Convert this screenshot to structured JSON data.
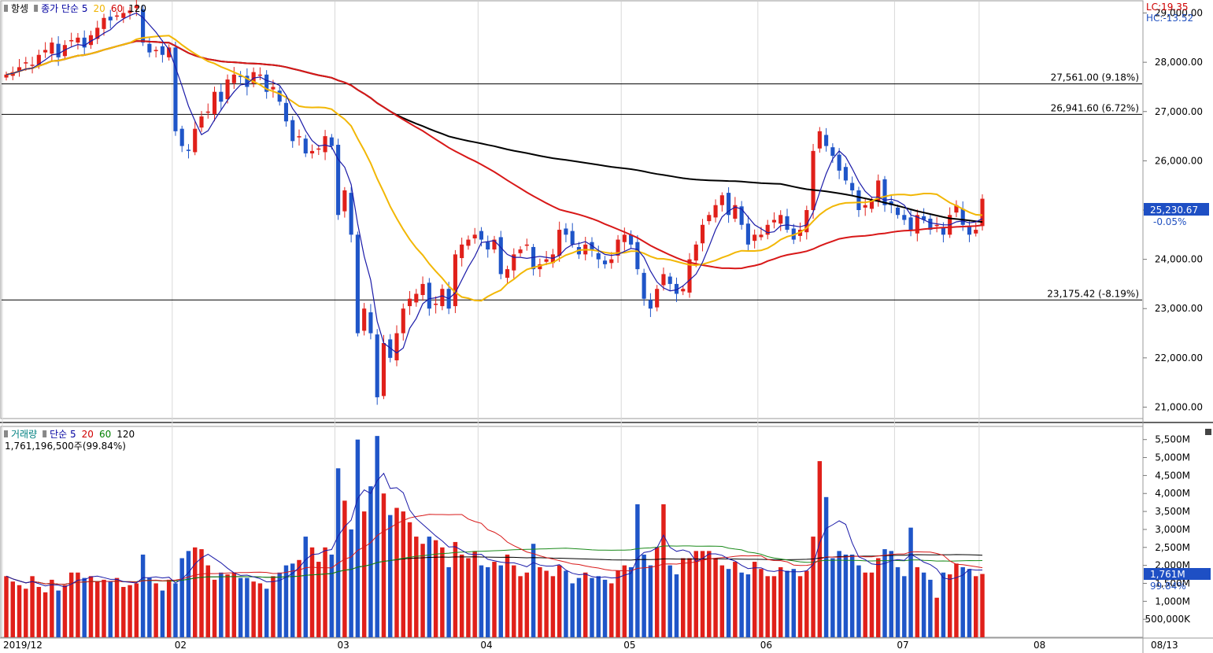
{
  "price_panel": {
    "legend": [
      {
        "text": "항셍",
        "color": "#000000"
      },
      {
        "text": "종가 단순 5",
        "color": "#0000a0"
      },
      {
        "text": "20",
        "color": "#f0b400"
      },
      {
        "text": "60",
        "color": "#d00000"
      },
      {
        "text": "120",
        "color": "#000000"
      }
    ],
    "lc_label": "LC:19.35",
    "hc_label": "HC:-13.52",
    "current_price_label": "25,230.67",
    "current_change_label": "-0.05%",
    "hlines": [
      {
        "value": 27561.0,
        "label": "27,561.00 (9.18%)"
      },
      {
        "value": 26941.6,
        "label": "26,941.60 (6.72%)"
      },
      {
        "value": 23175.42,
        "label": "23,175.42 (-8.19%)"
      }
    ],
    "y_ticks": [
      "29,000.00",
      "28,000.00",
      "27,000.00",
      "26,000.00",
      "25,000.00",
      "24,000.00",
      "23,000.00",
      "22,000.00",
      "21,000.00"
    ]
  },
  "volume_panel": {
    "legend": [
      {
        "text": "거래량",
        "color": "#008080"
      },
      {
        "text": "단순 5",
        "color": "#0000a0"
      },
      {
        "text": "20",
        "color": "#d00000"
      },
      {
        "text": "60",
        "color": "#008000"
      },
      {
        "text": "120",
        "color": "#000000"
      }
    ],
    "info_label": "1,761,196,500주(99.84%)",
    "current_volume_label": "1,761M",
    "current_pct_label": "99.84%",
    "y_ticks": [
      "5,500M",
      "5,000M",
      "4,500M",
      "4,000M",
      "3,500M",
      "3,000M",
      "2,500M",
      "2,000M",
      "1,500M",
      "1,000M",
      "500,000K"
    ]
  },
  "x_axis": {
    "labels": [
      "2019/12",
      "02",
      "03",
      "04",
      "05",
      "06",
      "07",
      "08"
    ],
    "right_label": "08/13"
  },
  "chart_data": [
    {
      "type": "candlestick",
      "title": "항셍",
      "y_range": [
        20800,
        29200
      ],
      "moving_averages": [
        5,
        20,
        60,
        120
      ],
      "ohlc_closes_approx": [
        27750,
        27800,
        27900,
        28000,
        27950,
        28150,
        28250,
        28400,
        28100,
        28350,
        28450,
        28500,
        28300,
        28550,
        28700,
        28900,
        28850,
        28950,
        29000,
        29050,
        29150,
        28400,
        28200,
        28250,
        28150,
        28300,
        26600,
        26300,
        26200,
        26650,
        26900,
        27000,
        27400,
        27200,
        27650,
        27750,
        27700,
        27500,
        27800,
        27750,
        27400,
        27500,
        27200,
        26800,
        26400,
        26500,
        26150,
        26200,
        26250,
        26500,
        26300,
        24900,
        25400,
        24500,
        22500,
        23000,
        22500,
        21200,
        22300,
        22000,
        22500,
        23000,
        23200,
        23300,
        23500,
        23000,
        23100,
        23400,
        23000,
        24100,
        24300,
        24400,
        24500,
        24400,
        24200,
        24400,
        23700,
        23800,
        24100,
        24200,
        24300,
        23800,
        23900,
        24000,
        24100,
        24600,
        24500,
        24300,
        24100,
        24300,
        24200,
        24000,
        23900,
        24000,
        24400,
        24500,
        24300,
        23800,
        23200,
        23000,
        23400,
        23700,
        23500,
        23300,
        23400,
        24000,
        24300,
        24700,
        24900,
        25100,
        25300,
        24900,
        25100,
        24700,
        24300,
        24500,
        24500,
        24700,
        24800,
        24900,
        24600,
        24400,
        24600,
        25000,
        26200,
        26600,
        26300,
        26100,
        25800,
        25600,
        25400,
        25000,
        25100,
        25200,
        25600,
        25100,
        25100,
        24900,
        24800,
        24600,
        24900,
        24800,
        24600,
        24700,
        24500,
        24900,
        25100,
        24700,
        24500,
        24600,
        25230
      ]
    },
    {
      "type": "bar",
      "title": "거래량",
      "unit": "M",
      "y_range": [
        0,
        5800
      ],
      "values_approx": [
        1700,
        1550,
        1450,
        1350,
        1700,
        1400,
        1250,
        1600,
        1300,
        1450,
        1800,
        1800,
        1650,
        1700,
        1550,
        1600,
        1550,
        1650,
        1400,
        1450,
        1500,
        2300,
        1650,
        1500,
        1300,
        1600,
        1500,
        2200,
        2400,
        2500,
        2450,
        2000,
        1600,
        1800,
        1750,
        1800,
        1650,
        1650,
        1550,
        1500,
        1350,
        1700,
        1800,
        2000,
        2050,
        2150,
        2800,
        2500,
        2100,
        2500,
        2300,
        4700,
        3800,
        3000,
        5500,
        3500,
        4200,
        5600,
        4000,
        3400,
        3600,
        3500,
        3200,
        2800,
        2600,
        2800,
        2700,
        2500,
        1950,
        2650,
        2300,
        2200,
        2400,
        2000,
        1950,
        2100,
        2000,
        2300,
        2000,
        1700,
        1800,
        2600,
        1950,
        1850,
        1700,
        2000,
        1850,
        1500,
        1650,
        1800,
        1650,
        1700,
        1600,
        1500,
        1850,
        2000,
        1950,
        3700,
        2300,
        2000,
        2500,
        3700,
        2000,
        1750,
        2200,
        2200,
        2400,
        2400,
        2400,
        2200,
        2000,
        1900,
        2100,
        1800,
        1750,
        2100,
        1900,
        1700,
        1700,
        1950,
        1850,
        1900,
        1700,
        1850,
        2800,
        4900,
        3900,
        2200,
        2400,
        2300,
        2300,
        2000,
        1800,
        1800,
        2200,
        2450,
        2400,
        1950,
        1700,
        3050,
        1950,
        1800,
        1600,
        1100,
        1800,
        1750,
        2050,
        1950,
        1900,
        1700,
        1761
      ]
    }
  ]
}
